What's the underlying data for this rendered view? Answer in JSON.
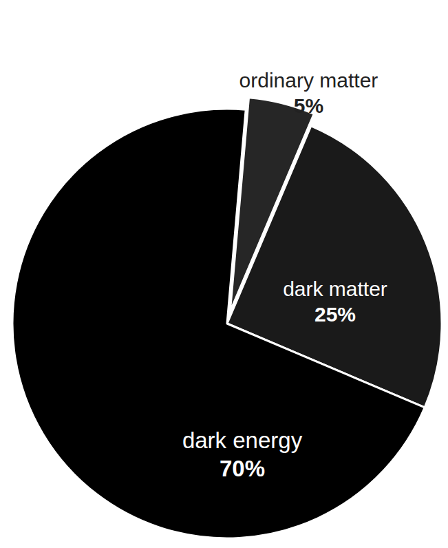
{
  "chart_data": {
    "type": "pie",
    "categories": [
      "ordinary matter",
      "dark matter",
      "dark energy"
    ],
    "values": [
      5,
      25,
      70
    ],
    "value_labels": [
      "5%",
      "25%",
      "70%"
    ],
    "colors": [
      "#262626",
      "#1a1a1a",
      "#000000"
    ],
    "data_labels": true
  }
}
